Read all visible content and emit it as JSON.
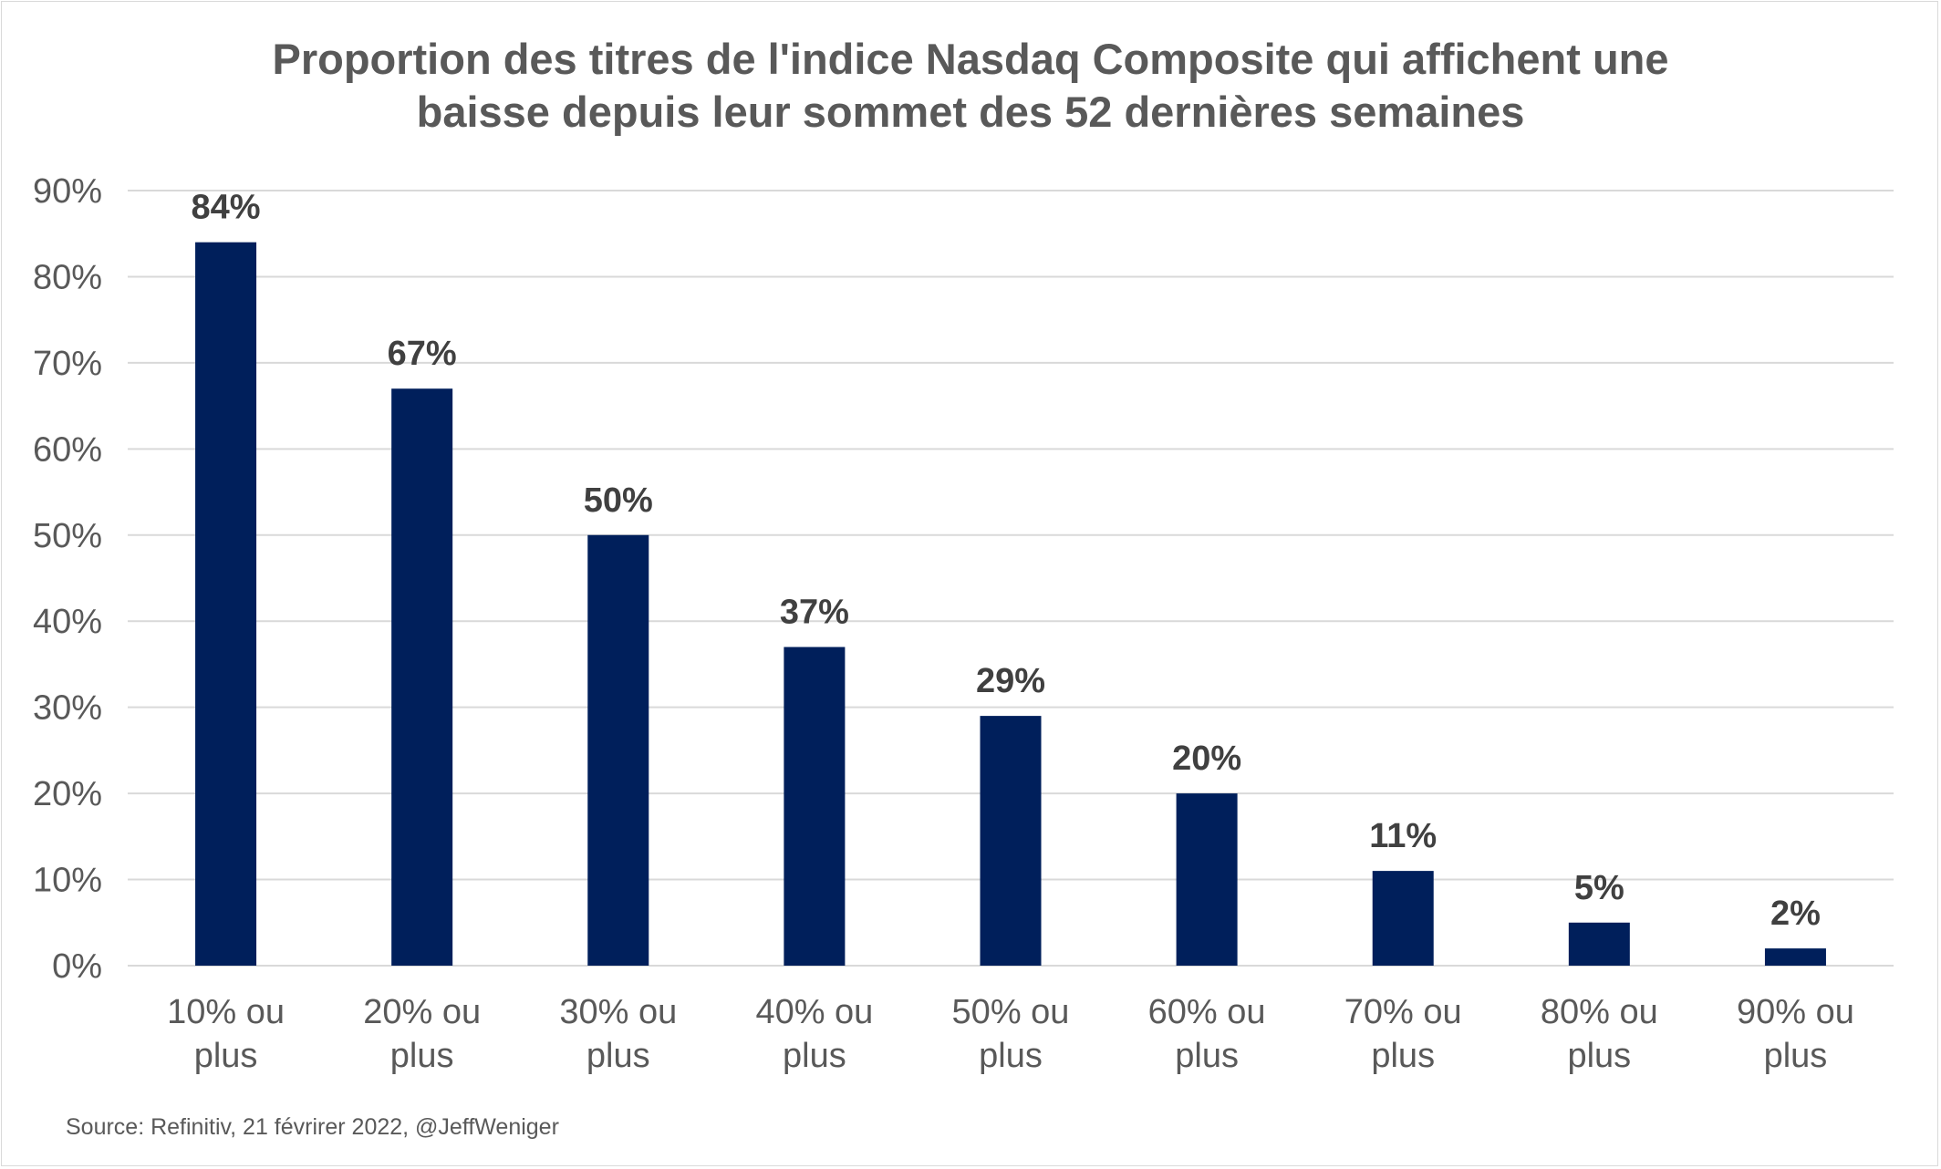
{
  "chart_data": {
    "type": "bar",
    "title_lines": [
      "Proportion des titres de l'indice Nasdaq Composite qui affichent une",
      "baisse depuis leur sommet des 52 dernières semaines"
    ],
    "categories": [
      [
        "10% ou",
        "plus"
      ],
      [
        "20% ou",
        "plus"
      ],
      [
        "30% ou",
        "plus"
      ],
      [
        "40% ou",
        "plus"
      ],
      [
        "50% ou",
        "plus"
      ],
      [
        "60% ou",
        "plus"
      ],
      [
        "70% ou",
        "plus"
      ],
      [
        "80% ou",
        "plus"
      ],
      [
        "90% ou",
        "plus"
      ]
    ],
    "values": [
      84,
      67,
      50,
      37,
      29,
      20,
      11,
      5,
      2
    ],
    "data_labels": [
      "84%",
      "67%",
      "50%",
      "37%",
      "29%",
      "20%",
      "11%",
      "5%",
      "2%"
    ],
    "y_ticks": [
      "0%",
      "10%",
      "20%",
      "30%",
      "40%",
      "50%",
      "60%",
      "70%",
      "80%",
      "90%"
    ],
    "ylim": [
      0,
      90
    ],
    "grid": true,
    "legend": "none",
    "bar_color": "#001f5b",
    "grid_color": "#d9d9d9"
  },
  "footer": {
    "source": "Source: Refinitiv, 21 févrirer 2022, @JeffWeniger"
  }
}
